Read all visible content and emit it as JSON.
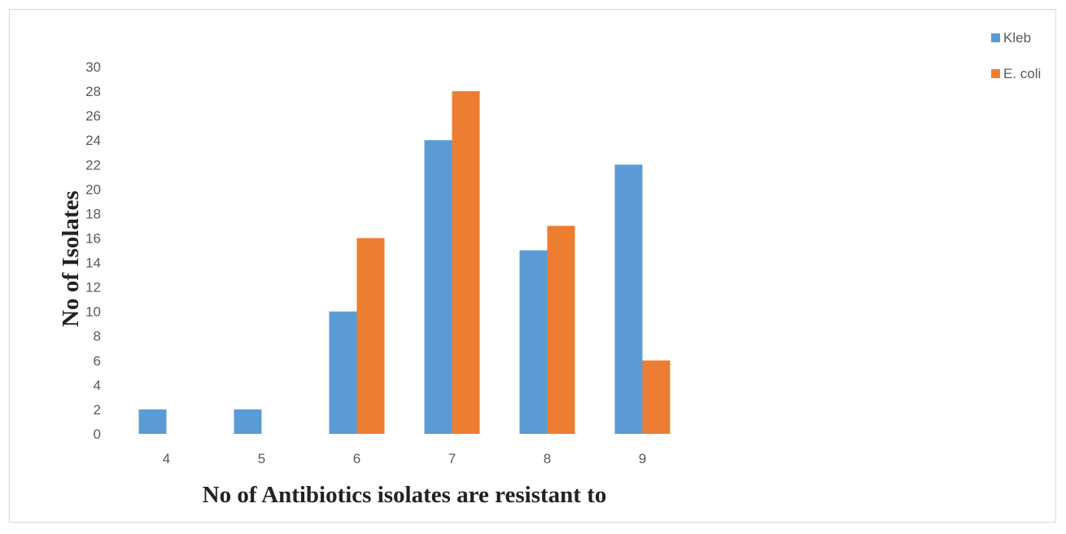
{
  "chart_data": {
    "type": "bar",
    "title": "",
    "xlabel": "No of Antibiotics isolates are resistant to",
    "ylabel": "No of Isolates",
    "categories": [
      "4",
      "5",
      "6",
      "7",
      "8",
      "9"
    ],
    "series": [
      {
        "name": "Kleb",
        "color": "#5b9bd5",
        "values": [
          2,
          2,
          10,
          24,
          15,
          22
        ]
      },
      {
        "name": "E. coli",
        "color": "#ed7d31",
        "values": [
          0,
          0,
          16,
          28,
          17,
          6
        ]
      }
    ],
    "ylim": [
      0,
      30
    ],
    "yticks": [
      0,
      2,
      4,
      6,
      8,
      10,
      12,
      14,
      16,
      18,
      20,
      22,
      24,
      26,
      28,
      30
    ],
    "grid": false,
    "legend": "top-right"
  }
}
